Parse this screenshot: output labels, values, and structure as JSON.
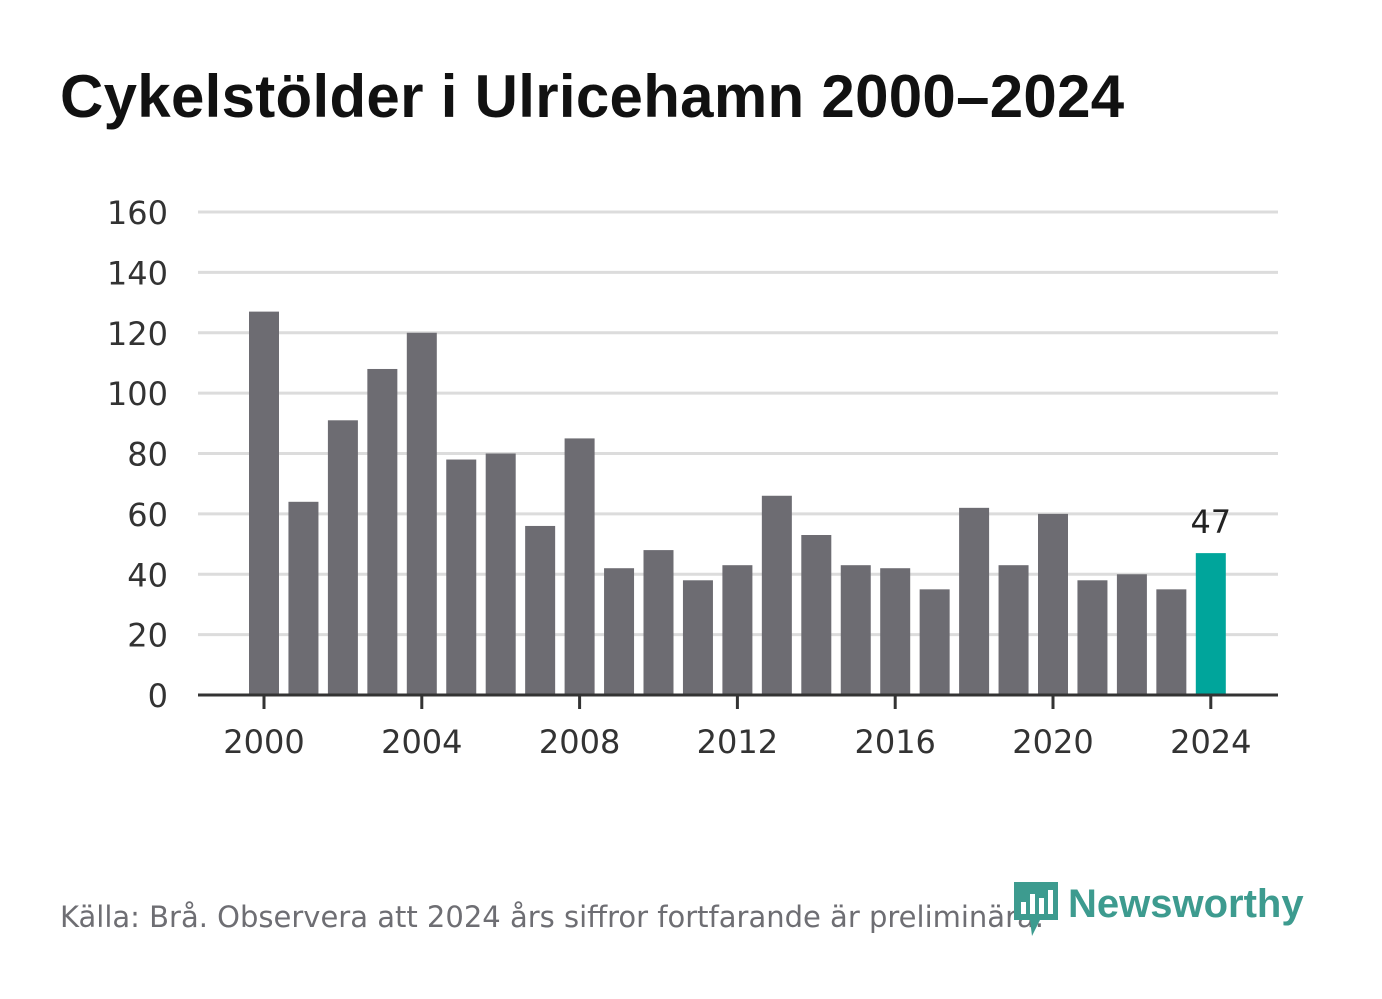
{
  "title": "Cykelstölder i Ulricehamn 2000–2024",
  "source_note": "Källa: Brå. Observera att 2024 års siffror fortfarande är preliminära.",
  "brand": {
    "name": "Newsworthy",
    "icon": "newsworthy-logo-icon",
    "color": "#3d9b8f"
  },
  "colors": {
    "bar": "#6d6c72",
    "highlight": "#00a59b",
    "grid": "#dcdcdc",
    "axis": "#333333"
  },
  "chart_data": {
    "type": "bar",
    "title": "Cykelstölder i Ulricehamn 2000–2024",
    "xlabel": "",
    "ylabel": "",
    "categories": [
      2000,
      2001,
      2002,
      2003,
      2004,
      2005,
      2006,
      2007,
      2008,
      2009,
      2010,
      2011,
      2012,
      2013,
      2014,
      2015,
      2016,
      2017,
      2018,
      2019,
      2020,
      2021,
      2022,
      2023,
      2024
    ],
    "values": [
      127,
      64,
      91,
      108,
      120,
      78,
      80,
      56,
      85,
      42,
      48,
      38,
      43,
      66,
      53,
      43,
      42,
      35,
      62,
      43,
      60,
      38,
      40,
      35,
      47
    ],
    "highlight_index": 24,
    "highlight_label": "47",
    "ylim": [
      0,
      160
    ],
    "yticks": [
      0,
      20,
      40,
      60,
      80,
      100,
      120,
      140,
      160
    ],
    "xticks": [
      "2000",
      "2004",
      "2008",
      "2012",
      "2016",
      "2020",
      "2024"
    ],
    "grid": true
  }
}
